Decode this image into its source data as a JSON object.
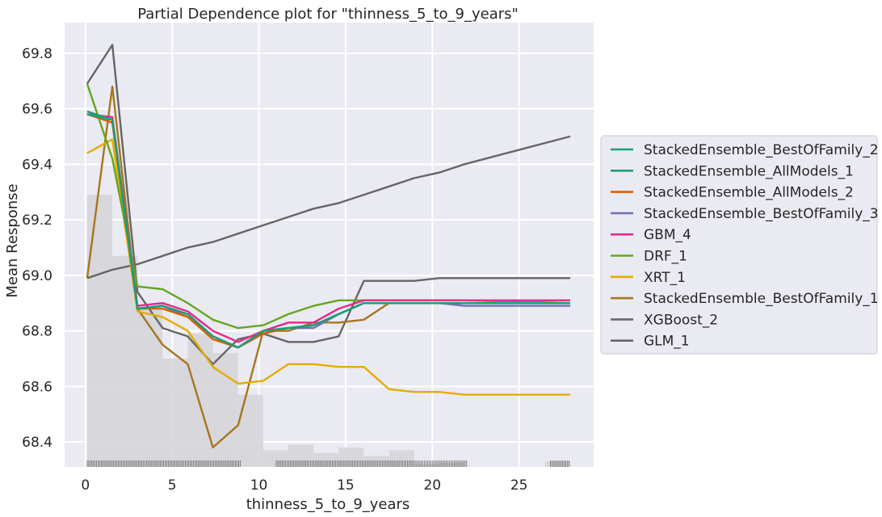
{
  "chart_data": {
    "type": "line",
    "title": "Partial Dependence plot for \"thinness_5_to_9_years\"",
    "xlabel": "thinness_5_to_9_years",
    "ylabel": "Mean Response",
    "xlim": [
      -1.2,
      29.3
    ],
    "ylim": [
      68.31,
      69.91
    ],
    "xticks": [
      0,
      5,
      10,
      15,
      20,
      25
    ],
    "yticks": [
      68.4,
      68.6,
      68.8,
      69.0,
      69.2,
      69.4,
      69.6,
      69.8
    ],
    "ytick_labels": [
      "68.4",
      "68.6",
      "68.8",
      "69.0",
      "69.2",
      "69.4",
      "69.6",
      "69.8"
    ],
    "grid": true,
    "legend_position": "right",
    "x": [
      0.1,
      1.55,
      3.0,
      4.45,
      5.9,
      7.35,
      8.8,
      10.25,
      11.7,
      13.15,
      14.6,
      16.05,
      17.5,
      18.95,
      20.4,
      21.85,
      27.95
    ],
    "series": [
      {
        "name": "StackedEnsemble_BestOfFamily_2",
        "color": "#1b9e77",
        "values": [
          69.59,
          69.56,
          68.88,
          68.89,
          68.86,
          68.78,
          68.74,
          68.8,
          68.81,
          68.82,
          68.86,
          68.9,
          68.9,
          68.9,
          68.9,
          68.9,
          68.9
        ]
      },
      {
        "name": "StackedEnsemble_AllModels_1",
        "color": "#1b9e77",
        "values": [
          69.58,
          69.56,
          68.88,
          68.89,
          68.86,
          68.78,
          68.74,
          68.8,
          68.81,
          68.82,
          68.86,
          68.9,
          68.9,
          68.9,
          68.9,
          68.9,
          68.9
        ]
      },
      {
        "name": "StackedEnsemble_AllModels_2",
        "color": "#d95f02",
        "values": [
          69.58,
          69.55,
          68.88,
          68.88,
          68.85,
          68.77,
          68.74,
          68.79,
          68.81,
          68.82,
          68.86,
          68.9,
          68.9,
          68.9,
          68.9,
          68.9,
          68.9
        ]
      },
      {
        "name": "StackedEnsemble_BestOfFamily_3",
        "color": "#7570b3",
        "values": [
          69.59,
          69.56,
          68.88,
          68.89,
          68.85,
          68.78,
          68.74,
          68.8,
          68.81,
          68.81,
          68.86,
          68.9,
          68.9,
          68.9,
          68.9,
          68.89,
          68.89
        ]
      },
      {
        "name": "GBM_4",
        "color": "#e7298a",
        "values": [
          69.58,
          69.57,
          68.89,
          68.9,
          68.87,
          68.8,
          68.76,
          68.8,
          68.83,
          68.83,
          68.88,
          68.91,
          68.91,
          68.91,
          68.91,
          68.91,
          68.91
        ]
      },
      {
        "name": "DRF_1",
        "color": "#66a61e",
        "values": [
          69.69,
          69.42,
          68.96,
          68.95,
          68.9,
          68.84,
          68.81,
          68.82,
          68.86,
          68.89,
          68.91,
          68.91,
          68.91,
          68.91,
          68.91,
          68.91,
          68.9
        ]
      },
      {
        "name": "XRT_1",
        "color": "#e6ab02",
        "values": [
          69.44,
          69.49,
          68.87,
          68.85,
          68.8,
          68.67,
          68.61,
          68.62,
          68.68,
          68.68,
          68.67,
          68.67,
          68.59,
          68.58,
          68.58,
          68.57,
          68.57
        ]
      },
      {
        "name": "StackedEnsemble_BestOfFamily_1",
        "color": "#a6761d",
        "values": [
          68.99,
          69.68,
          68.88,
          68.75,
          68.68,
          68.38,
          68.46,
          68.8,
          68.8,
          68.83,
          68.83,
          68.84,
          68.9,
          68.9,
          68.9,
          68.9,
          68.9
        ]
      },
      {
        "name": "XGBoost_2",
        "color": "#666666",
        "values": [
          69.69,
          69.83,
          68.94,
          68.81,
          68.78,
          68.68,
          68.77,
          68.79,
          68.76,
          68.76,
          68.78,
          68.98,
          68.98,
          68.98,
          68.99,
          68.99,
          68.99
        ]
      },
      {
        "name": "GLM_1",
        "color": "#666666",
        "values": [
          68.99,
          69.02,
          69.04,
          69.07,
          69.1,
          69.12,
          69.15,
          69.18,
          69.21,
          69.24,
          69.26,
          69.29,
          69.32,
          69.35,
          69.37,
          69.4,
          69.5
        ]
      }
    ],
    "histogram": {
      "bins": [
        {
          "x0": 0.1,
          "x1": 1.55,
          "value": 69.29
        },
        {
          "x0": 1.55,
          "x1": 3.0,
          "value": 69.07
        },
        {
          "x0": 3.0,
          "x1": 4.45,
          "value": 68.89
        },
        {
          "x0": 4.45,
          "x1": 5.9,
          "value": 68.7
        },
        {
          "x0": 5.9,
          "x1": 7.35,
          "value": 68.79
        },
        {
          "x0": 7.35,
          "x1": 8.8,
          "value": 68.72
        },
        {
          "x0": 8.8,
          "x1": 10.25,
          "value": 68.57
        },
        {
          "x0": 10.25,
          "x1": 11.7,
          "value": 68.37
        },
        {
          "x0": 11.7,
          "x1": 13.15,
          "value": 68.39
        },
        {
          "x0": 13.15,
          "x1": 14.6,
          "value": 68.36
        },
        {
          "x0": 14.6,
          "x1": 16.05,
          "value": 68.38
        },
        {
          "x0": 16.05,
          "x1": 17.5,
          "value": 68.35
        },
        {
          "x0": 17.5,
          "x1": 18.95,
          "value": 68.37
        },
        {
          "x0": 18.95,
          "x1": 20.4,
          "value": 68.32
        },
        {
          "x0": 20.4,
          "x1": 21.85,
          "value": 68.325
        },
        {
          "x0": 26.5,
          "x1": 27.95,
          "value": 68.33
        }
      ]
    },
    "rug_ranges": [
      [
        0.1,
        9.0
      ],
      [
        11.0,
        22.0
      ],
      [
        26.8,
        27.9
      ]
    ]
  },
  "colors": {
    "plot_background": "#eaeaf2",
    "grid": "#ffffff",
    "histogram": "#d3d3d8",
    "rug": "#555555",
    "legend_background": "#eaeaf2",
    "legend_border": "#c8c8d0"
  }
}
